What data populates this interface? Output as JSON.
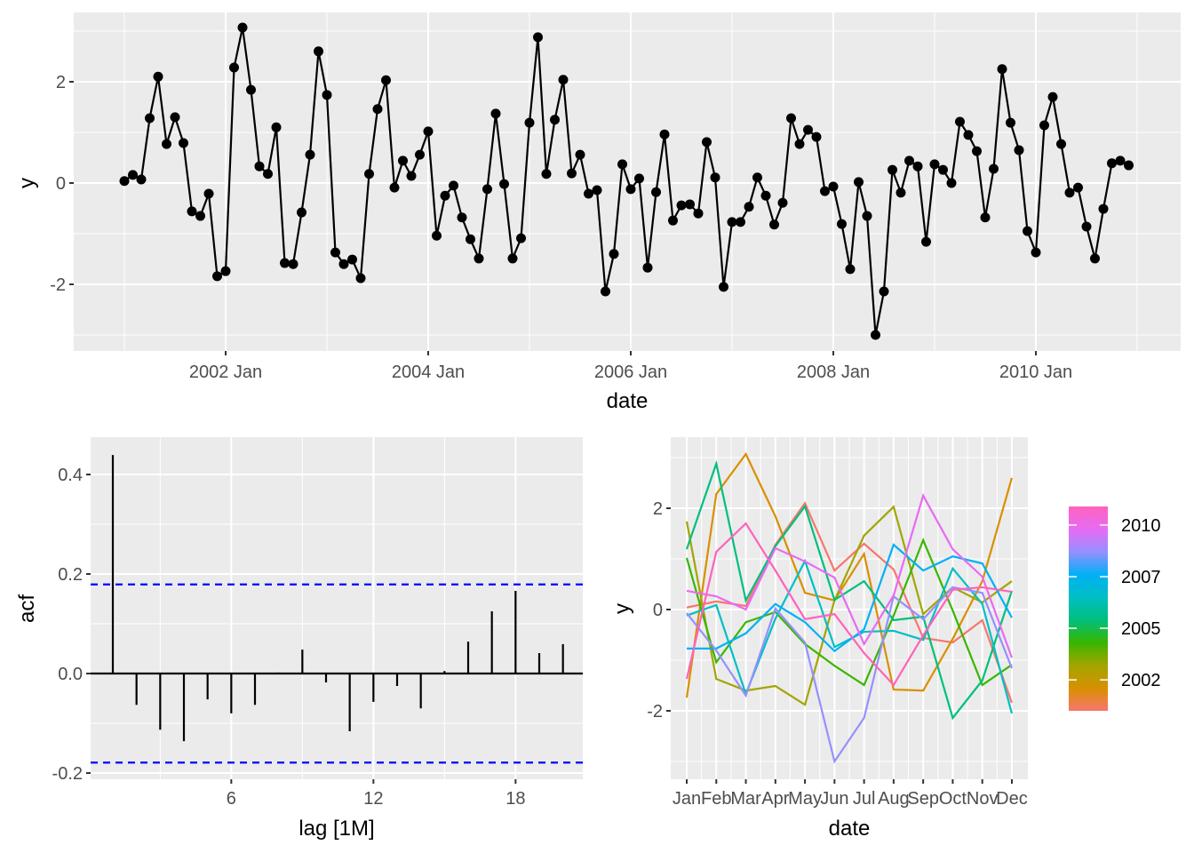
{
  "chart_data": [
    {
      "type": "line",
      "title": "",
      "xlabel": "date",
      "ylabel": "y",
      "start": "2001 Jan",
      "frequency": "monthly",
      "markers": true,
      "grid": true,
      "xticks": [
        "2002 Jan",
        "2004 Jan",
        "2006 Jan",
        "2008 Jan",
        "2010 Jan"
      ],
      "yticks": [
        "-2",
        "0",
        "2"
      ],
      "ylim": [
        -3.35,
        3.4
      ],
      "values": [
        0.04,
        0.16,
        0.07,
        1.28,
        2.1,
        0.77,
        1.3,
        0.79,
        -0.56,
        -0.65,
        -0.21,
        -1.84,
        -1.74,
        2.28,
        3.07,
        1.84,
        0.33,
        0.18,
        1.1,
        -1.58,
        -1.6,
        -0.58,
        0.56,
        2.6,
        1.74,
        -1.37,
        -1.6,
        -1.51,
        -1.88,
        0.18,
        1.46,
        2.03,
        -0.09,
        0.44,
        0.14,
        0.56,
        1.02,
        -1.04,
        -0.25,
        -0.05,
        -0.68,
        -1.11,
        -1.49,
        -0.12,
        1.37,
        -0.02,
        -1.49,
        -1.09,
        1.19,
        2.88,
        0.18,
        1.25,
        2.04,
        0.19,
        0.56,
        -0.21,
        -0.14,
        -2.14,
        -1.4,
        0.37,
        -0.12,
        0.09,
        -1.67,
        -0.18,
        0.96,
        -0.74,
        -0.44,
        -0.42,
        -0.6,
        0.81,
        0.11,
        -2.05,
        -0.77,
        -0.77,
        -0.47,
        0.11,
        -0.25,
        -0.82,
        -0.39,
        1.28,
        0.77,
        1.05,
        0.91,
        -0.16,
        -0.07,
        -0.81,
        -1.7,
        0.02,
        -0.65,
        -3.0,
        -2.14,
        0.26,
        -0.19,
        0.44,
        0.33,
        -1.16,
        0.37,
        0.26,
        0.0,
        1.21,
        0.95,
        0.63,
        -0.68,
        0.28,
        2.25,
        1.19,
        0.65,
        -0.95,
        -1.37,
        1.14,
        1.7,
        0.77,
        -0.19,
        -0.09,
        -0.86,
        -1.49,
        -0.51,
        0.39,
        0.44,
        0.35
      ]
    },
    {
      "type": "bar",
      "title": "",
      "xlabel": "lag [1M]",
      "ylabel": "acf",
      "lags": [
        1,
        2,
        3,
        4,
        5,
        6,
        7,
        8,
        9,
        10,
        11,
        12,
        13,
        14,
        15,
        16,
        17,
        18,
        19,
        20
      ],
      "values": [
        0.439,
        -0.063,
        -0.113,
        -0.136,
        -0.052,
        -0.08,
        -0.063,
        0.002,
        0.048,
        -0.018,
        -0.116,
        -0.057,
        -0.025,
        -0.07,
        0.005,
        0.064,
        0.125,
        0.166,
        0.041,
        0.059
      ],
      "confidence_bound": 0.179,
      "xticks": [
        "6",
        "12",
        "18"
      ],
      "yticks": [
        "-0.2",
        "0.0",
        "0.2",
        "0.4"
      ],
      "ylim": [
        -0.2125,
        0.475
      ],
      "xlim": [
        0.06,
        20.83
      ]
    },
    {
      "type": "line",
      "title": "",
      "subtype": "seasonal",
      "xlabel": "date",
      "ylabel": "y",
      "xticks": [
        "Jan",
        "Feb",
        "Mar",
        "Apr",
        "May",
        "Jun",
        "Jul",
        "Aug",
        "Sep",
        "Oct",
        "Nov",
        "Dec"
      ],
      "yticks": [
        "-2",
        "0",
        "2"
      ],
      "ylim": [
        -3.35,
        3.4
      ],
      "years": [
        2001,
        2002,
        2003,
        2004,
        2005,
        2006,
        2007,
        2008,
        2009,
        2010
      ],
      "year_colors": [
        "#F8766D",
        "#D89000",
        "#A3A500",
        "#39B600",
        "#00BF7D",
        "#00BFC4",
        "#00B0F6",
        "#9590FF",
        "#E76BF3",
        "#FF62BC"
      ],
      "legend": {
        "placement": "right",
        "labels": [
          "2010",
          "2007",
          "2005",
          "2002"
        ],
        "label_years": [
          2010,
          2007.5,
          2005,
          2002.5
        ],
        "range": [
          2001,
          2010.9
        ]
      },
      "values_source": "same series as panel 1, split by year"
    }
  ]
}
